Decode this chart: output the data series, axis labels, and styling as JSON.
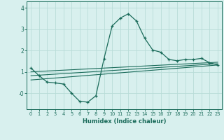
{
  "xlabel": "Humidex (Indice chaleur)",
  "bg_color": "#d8f0ee",
  "grid_color": "#b8dcd8",
  "line_color": "#1a6b5a",
  "xlim": [
    -0.5,
    23.5
  ],
  "ylim": [
    -0.75,
    4.3
  ],
  "xticks": [
    0,
    1,
    2,
    3,
    4,
    5,
    6,
    7,
    8,
    9,
    10,
    11,
    12,
    13,
    14,
    15,
    16,
    17,
    18,
    19,
    20,
    21,
    22,
    23
  ],
  "ytick_vals": [
    0,
    1,
    2,
    3,
    4
  ],
  "ytick_labels": [
    "-0",
    "1",
    "2",
    "3",
    "4"
  ],
  "line1_x": [
    0,
    1,
    2,
    3,
    4,
    5,
    6,
    7,
    8,
    9,
    10,
    11,
    12,
    13,
    14,
    15,
    16,
    17,
    18,
    19,
    20,
    21,
    22,
    23
  ],
  "line1_y": [
    1.18,
    0.82,
    0.52,
    0.48,
    0.43,
    0.0,
    -0.38,
    -0.42,
    -0.12,
    1.62,
    3.15,
    3.52,
    3.72,
    3.38,
    2.58,
    2.02,
    1.92,
    1.58,
    1.52,
    1.58,
    1.58,
    1.63,
    1.43,
    1.32
  ],
  "line2_x": [
    0,
    23
  ],
  "line2_y": [
    1.0,
    1.45
  ],
  "line3_x": [
    0,
    23
  ],
  "line3_y": [
    0.82,
    1.38
  ],
  "line4_x": [
    0,
    23
  ],
  "line4_y": [
    0.62,
    1.32
  ]
}
